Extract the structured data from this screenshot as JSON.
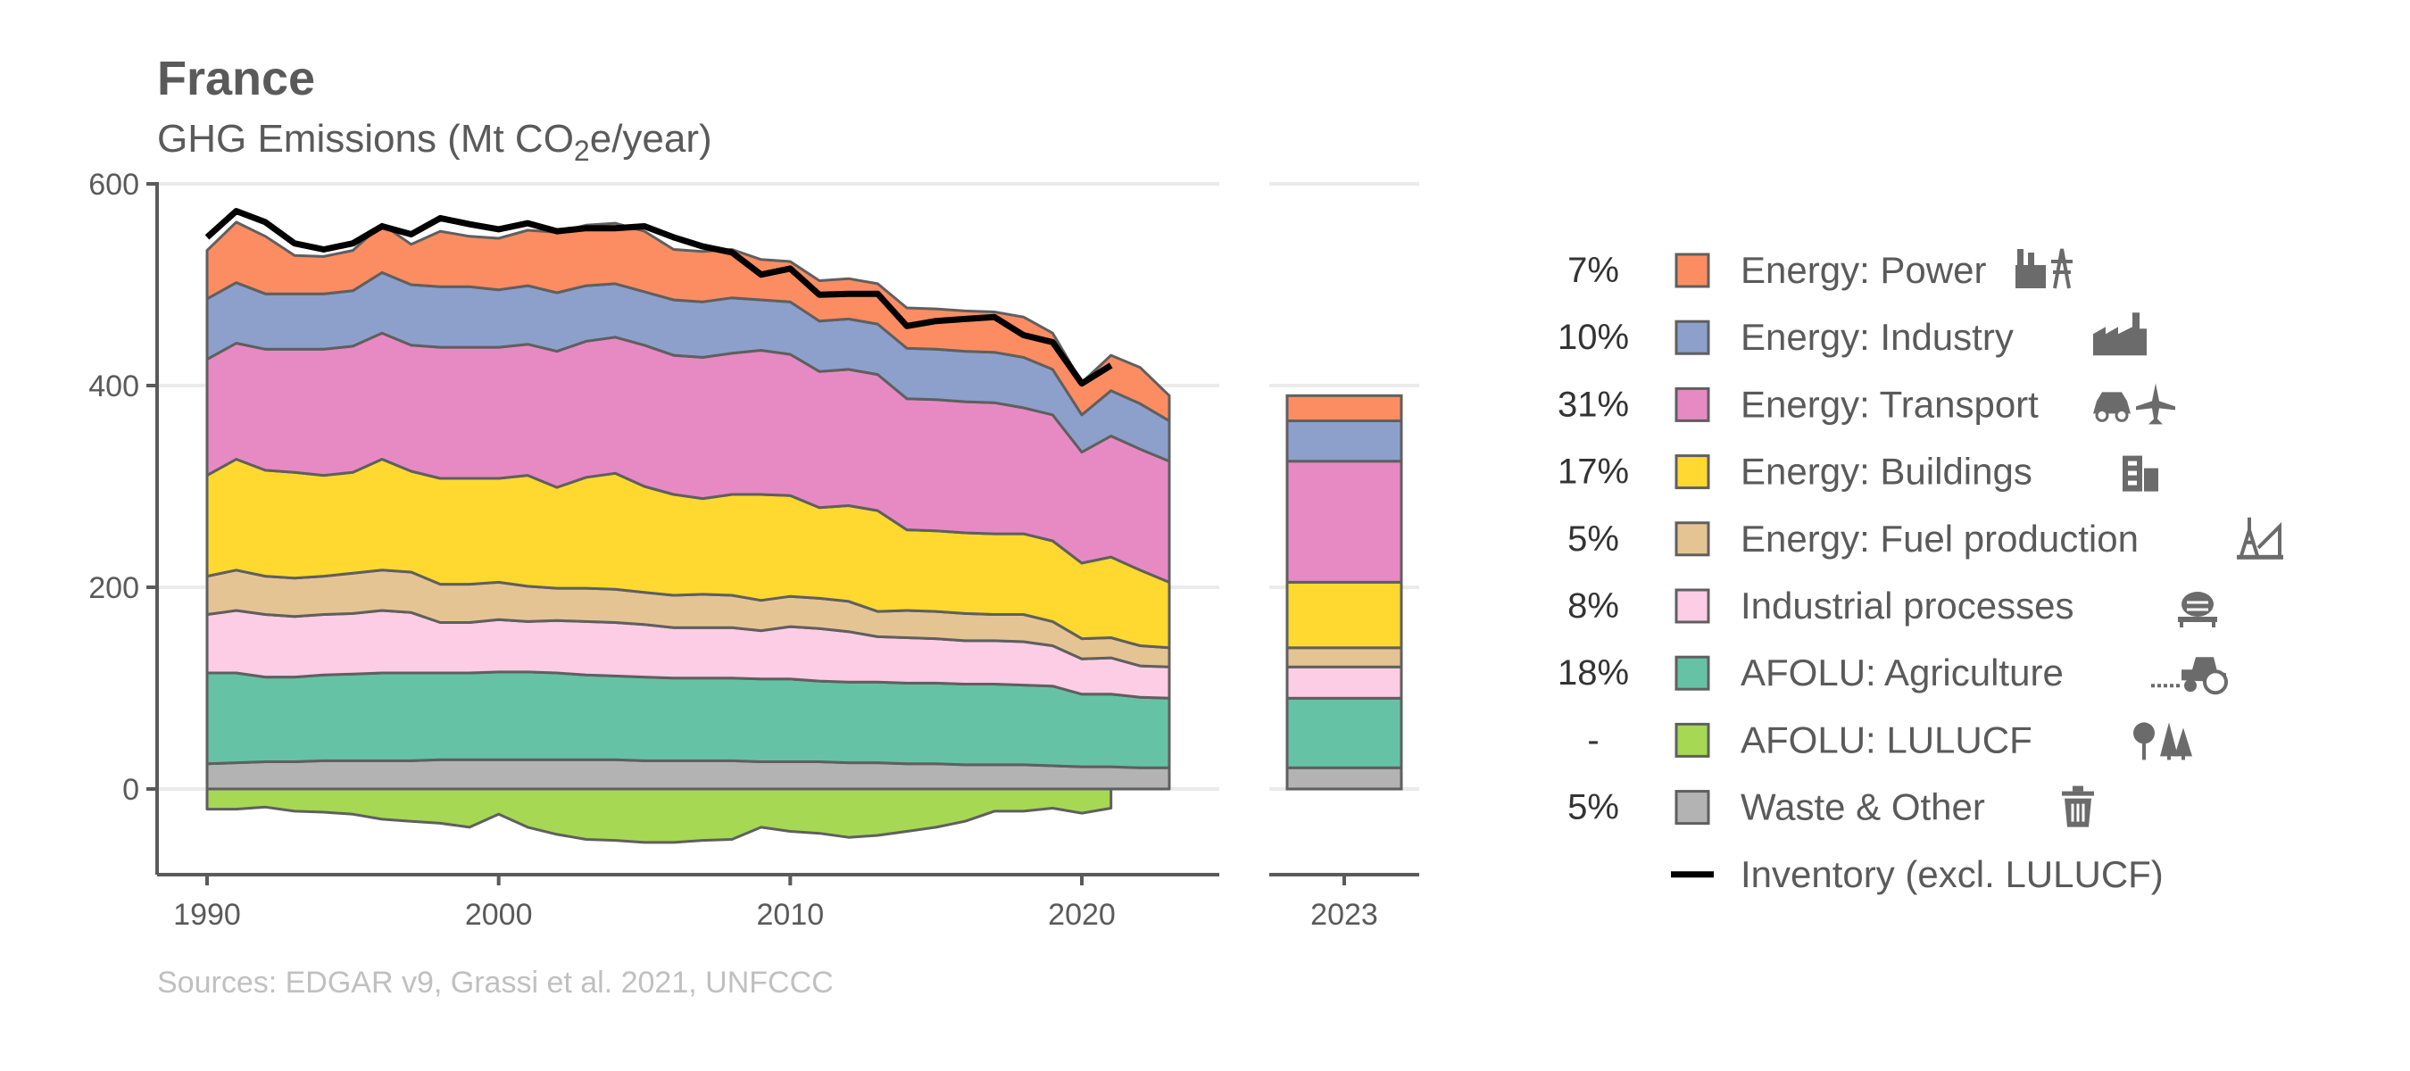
{
  "chart_data": {
    "type": "area",
    "title": "France",
    "subtitle_prefix": "GHG Emissions (Mt CO",
    "subtitle_sub": "2",
    "subtitle_suffix": "e/year)",
    "source": "Sources: EDGAR v9, Grassi et al. 2021, UNFCCC",
    "x": [
      1990,
      1991,
      1992,
      1993,
      1994,
      1995,
      1996,
      1997,
      1998,
      1999,
      2000,
      2001,
      2002,
      2003,
      2004,
      2005,
      2006,
      2007,
      2008,
      2009,
      2010,
      2011,
      2012,
      2013,
      2014,
      2015,
      2016,
      2017,
      2018,
      2019,
      2020,
      2021,
      2022,
      2023
    ],
    "xlim": [
      1990,
      2023
    ],
    "ylim": [
      -85,
      600
    ],
    "y_ticks": [
      0,
      200,
      400,
      600
    ],
    "y_tick_labels": [
      "0",
      "200",
      "400",
      "600"
    ],
    "x_ticks": [
      1990,
      2000,
      2010,
      2020
    ],
    "x_tick_labels": [
      "1990",
      "2000",
      "2010",
      "2020"
    ],
    "bar_year_label": "2023",
    "grid": true,
    "legend_position": "right",
    "series": [
      {
        "name": "Waste & Other",
        "color": "#b3b3b3",
        "share": "5%",
        "icon": "trash-icon",
        "values": [
          25,
          26,
          27,
          27,
          28,
          28,
          28,
          28,
          29,
          29,
          29,
          29,
          29,
          29,
          29,
          28,
          28,
          28,
          28,
          27,
          27,
          27,
          26,
          26,
          25,
          25,
          24,
          24,
          24,
          23,
          22,
          22,
          21,
          21
        ]
      },
      {
        "name": "AFOLU: Agriculture",
        "color": "#66c2a5",
        "share": "18%",
        "icon": "tractor-icon",
        "values": [
          90,
          89,
          84,
          84,
          85,
          86,
          87,
          87,
          86,
          86,
          87,
          87,
          86,
          84,
          83,
          83,
          82,
          82,
          82,
          82,
          82,
          80,
          80,
          80,
          80,
          80,
          80,
          80,
          79,
          79,
          72,
          72,
          70,
          69
        ]
      },
      {
        "name": "Industrial processes",
        "color": "#fccde5",
        "share": "8%",
        "icon": "cement-icon",
        "values": [
          58,
          62,
          62,
          60,
          60,
          60,
          62,
          60,
          50,
          50,
          52,
          50,
          52,
          53,
          53,
          52,
          50,
          50,
          50,
          48,
          52,
          52,
          50,
          45,
          45,
          44,
          43,
          43,
          43,
          40,
          35,
          36,
          31,
          31
        ]
      },
      {
        "name": "Energy: Fuel production",
        "color": "#e5c494",
        "share": "5%",
        "icon": "oil-rig-icon",
        "values": [
          38,
          40,
          38,
          38,
          38,
          40,
          40,
          40,
          38,
          38,
          37,
          35,
          32,
          33,
          33,
          32,
          32,
          33,
          32,
          30,
          30,
          30,
          30,
          25,
          27,
          27,
          27,
          26,
          27,
          24,
          20,
          20,
          20,
          19
        ]
      },
      {
        "name": "Energy: Buildings",
        "color": "#ffd92f",
        "share": "17%",
        "icon": "building-icon",
        "values": [
          100,
          110,
          105,
          105,
          100,
          100,
          110,
          100,
          105,
          105,
          103,
          110,
          100,
          110,
          115,
          105,
          100,
          95,
          100,
          105,
          100,
          90,
          95,
          100,
          80,
          80,
          80,
          80,
          80,
          80,
          75,
          80,
          75,
          65
        ]
      },
      {
        "name": "Energy: Transport",
        "color": "#e78ac3",
        "share": "31%",
        "icon": "car-plane-icon",
        "values": [
          115,
          115,
          120,
          122,
          125,
          125,
          125,
          125,
          130,
          130,
          130,
          130,
          135,
          135,
          135,
          140,
          138,
          140,
          140,
          143,
          140,
          135,
          135,
          135,
          130,
          130,
          130,
          130,
          125,
          125,
          110,
          120,
          120,
          120
        ]
      },
      {
        "name": "Energy: Industry",
        "color": "#8da0cb",
        "share": "10%",
        "icon": "factory-icon",
        "values": [
          60,
          60,
          55,
          55,
          55,
          55,
          60,
          60,
          60,
          60,
          57,
          58,
          58,
          55,
          53,
          53,
          55,
          55,
          55,
          50,
          52,
          50,
          50,
          50,
          50,
          50,
          50,
          50,
          50,
          45,
          37,
          45,
          45,
          40
        ]
      },
      {
        "name": "Energy: Power",
        "color": "#fc8d62",
        "share": "7%",
        "icon": "power-plant-icon",
        "values": [
          48,
          60,
          57,
          38,
          37,
          40,
          48,
          40,
          55,
          50,
          51,
          55,
          60,
          60,
          60,
          60,
          50,
          50,
          48,
          40,
          40,
          40,
          40,
          40,
          40,
          40,
          40,
          40,
          40,
          36,
          32,
          35,
          36,
          25
        ]
      },
      {
        "name": "AFOLU: LULUCF",
        "color": "#a6d854",
        "share": "-",
        "icon": "trees-icon",
        "values": [
          -20,
          -20,
          -18,
          -22,
          -23,
          -25,
          -30,
          -32,
          -34,
          -38,
          -25,
          -38,
          -45,
          -50,
          -51,
          -53,
          -53,
          -51,
          -50,
          -38,
          -42,
          -44,
          -48,
          -46,
          -42,
          -38,
          -32,
          -22,
          -22,
          -19,
          -24,
          -19,
          null,
          null
        ]
      }
    ],
    "inventory": {
      "name": "Inventory (excl. LULUCF)",
      "color": "#000000",
      "values": [
        547,
        573,
        562,
        541,
        535,
        541,
        558,
        550,
        566,
        560,
        555,
        561,
        553,
        556,
        556,
        558,
        547,
        538,
        532,
        510,
        516,
        490,
        491,
        491,
        459,
        464,
        466,
        468,
        450,
        443,
        402,
        420,
        null,
        null
      ]
    }
  }
}
